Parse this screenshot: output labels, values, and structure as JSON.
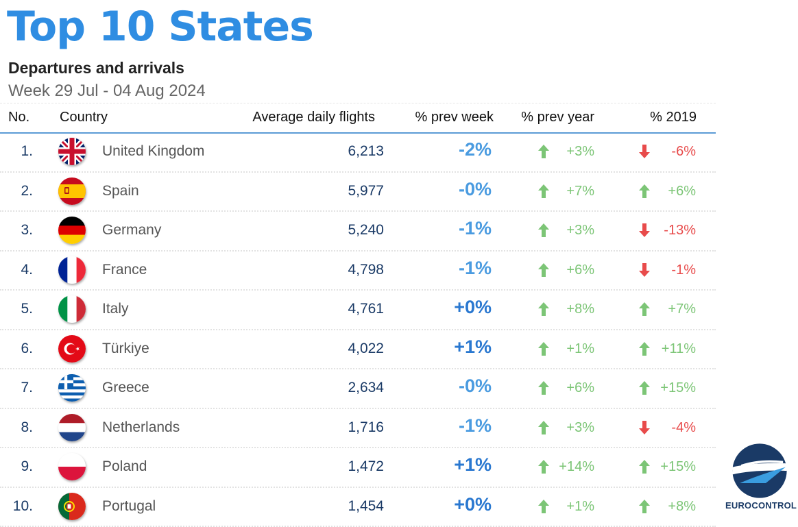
{
  "header": {
    "title": "Top 10 States",
    "subtitle": "Departures and arrivals",
    "period": "Week 29 Jul - 04 Aug 2024"
  },
  "table": {
    "columns": {
      "no": "No.",
      "country": "Country",
      "avg": "Average daily flights",
      "prev_week": "% prev week",
      "prev_year": "% prev year",
      "y2019": "% 2019"
    },
    "rows": [
      {
        "rank": "1.",
        "country": "United Kingdom",
        "flag": "uk",
        "avg": "6,213",
        "prev_week": "-2%",
        "week_dir": "down",
        "prev_year": "+3%",
        "year_dir": "up",
        "y2019": "-6%",
        "y2019_dir": "down"
      },
      {
        "rank": "2.",
        "country": "Spain",
        "flag": "spain",
        "avg": "5,977",
        "prev_week": "-0%",
        "week_dir": "down",
        "prev_year": "+7%",
        "year_dir": "up",
        "y2019": "+6%",
        "y2019_dir": "up"
      },
      {
        "rank": "3.",
        "country": "Germany",
        "flag": "germany",
        "avg": "5,240",
        "prev_week": "-1%",
        "week_dir": "down",
        "prev_year": "+3%",
        "year_dir": "up",
        "y2019": "-13%",
        "y2019_dir": "down"
      },
      {
        "rank": "4.",
        "country": "France",
        "flag": "france",
        "avg": "4,798",
        "prev_week": "-1%",
        "week_dir": "down",
        "prev_year": "+6%",
        "year_dir": "up",
        "y2019": "-1%",
        "y2019_dir": "down"
      },
      {
        "rank": "5.",
        "country": "Italy",
        "flag": "italy",
        "avg": "4,761",
        "prev_week": "+0%",
        "week_dir": "up",
        "prev_year": "+8%",
        "year_dir": "up",
        "y2019": "+7%",
        "y2019_dir": "up"
      },
      {
        "rank": "6.",
        "country": "Türkiye",
        "flag": "turkiye",
        "avg": "4,022",
        "prev_week": "+1%",
        "week_dir": "up",
        "prev_year": "+1%",
        "year_dir": "up",
        "y2019": "+11%",
        "y2019_dir": "up"
      },
      {
        "rank": "7.",
        "country": "Greece",
        "flag": "greece",
        "avg": "2,634",
        "prev_week": "-0%",
        "week_dir": "down",
        "prev_year": "+6%",
        "year_dir": "up",
        "y2019": "+15%",
        "y2019_dir": "up"
      },
      {
        "rank": "8.",
        "country": "Netherlands",
        "flag": "netherlands",
        "avg": "1,716",
        "prev_week": "-1%",
        "week_dir": "down",
        "prev_year": "+3%",
        "year_dir": "up",
        "y2019": "-4%",
        "y2019_dir": "down"
      },
      {
        "rank": "9.",
        "country": "Poland",
        "flag": "poland",
        "avg": "1,472",
        "prev_week": "+1%",
        "week_dir": "up",
        "prev_year": "+14%",
        "year_dir": "up",
        "y2019": "+15%",
        "y2019_dir": "up"
      },
      {
        "rank": "10.",
        "country": "Portugal",
        "flag": "portugal",
        "avg": "1,454",
        "prev_week": "+0%",
        "week_dir": "up",
        "prev_year": "+1%",
        "year_dir": "up",
        "y2019": "+8%",
        "y2019_dir": "up"
      }
    ]
  },
  "logo": {
    "text": "EUROCONTROL"
  },
  "colors": {
    "title": "#2f8de2",
    "week_down": "#4a9be0",
    "week_up": "#2a78d0",
    "positive": "#7cc576",
    "negative": "#e84b4b"
  }
}
